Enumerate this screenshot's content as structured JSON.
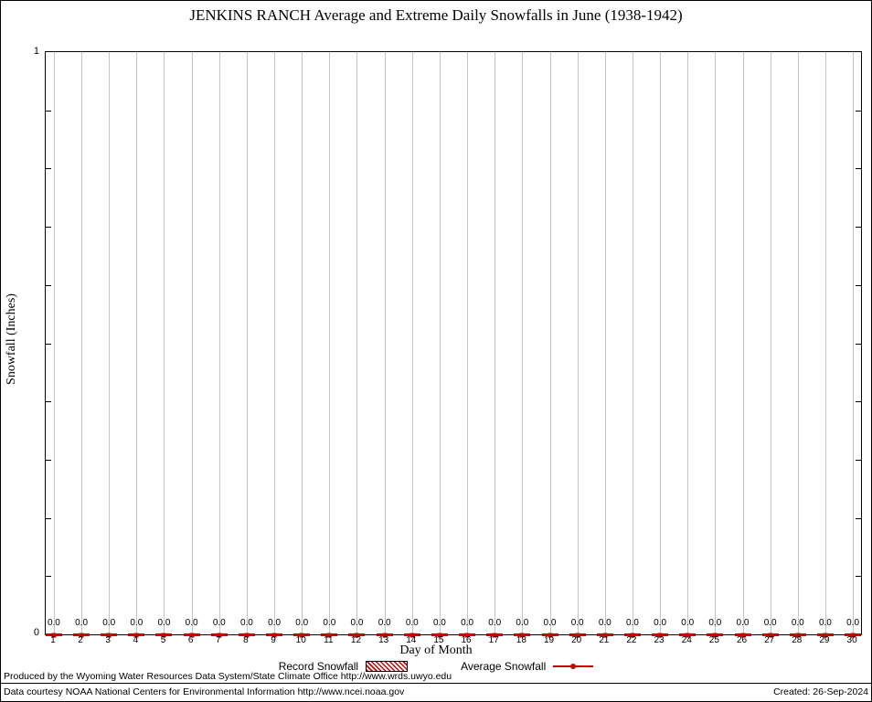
{
  "title": "JENKINS RANCH Average and Extreme Daily Snowfalls in June (1938-1942)",
  "y_axis": {
    "label": "Snowfall (Inches)",
    "max_label": "1",
    "min_label": "0"
  },
  "x_axis": {
    "label": "Day of Month"
  },
  "legend": {
    "record_label": "Record Snowfall",
    "average_label": "Average Snowfall"
  },
  "footer": {
    "line1": "Produced by the Wyoming Water Resources Data System/State Climate Office http://www.wrds.uwyo.edu",
    "line2": "Data courtesy NOAA National Centers for Environmental Information http://www.ncei.noaa.gov",
    "created": "Created: 26-Sep-2024"
  },
  "colors": {
    "record": "#cc0000",
    "average": "#cc0000",
    "grid": "#c4c4c4"
  },
  "chart_data": {
    "type": "bar",
    "title": "JENKINS RANCH Average and Extreme Daily Snowfalls in June (1938-1942)",
    "xlabel": "Day of Month",
    "ylabel": "Snowfall (Inches)",
    "ylim": [
      0,
      1
    ],
    "grid": "vertical",
    "legend_position": "bottom",
    "categories": [
      1,
      2,
      3,
      4,
      5,
      6,
      7,
      8,
      9,
      10,
      11,
      12,
      13,
      14,
      15,
      16,
      17,
      18,
      19,
      20,
      21,
      22,
      23,
      24,
      25,
      26,
      27,
      28,
      29,
      30
    ],
    "series": [
      {
        "name": "Record Snowfall",
        "values": [
          0.0,
          0.0,
          0.0,
          0.0,
          0.0,
          0.0,
          0.0,
          0.0,
          0.0,
          0.0,
          0.0,
          0.0,
          0.0,
          0.0,
          0.0,
          0.0,
          0.0,
          0.0,
          0.0,
          0.0,
          0.0,
          0.0,
          0.0,
          0.0,
          0.0,
          0.0,
          0.0,
          0.0,
          0.0,
          0.0
        ]
      },
      {
        "name": "Average Snowfall",
        "values": [
          0.0,
          0.0,
          0.0,
          0.0,
          0.0,
          0.0,
          0.0,
          0.0,
          0.0,
          0.0,
          0.0,
          0.0,
          0.0,
          0.0,
          0.0,
          0.0,
          0.0,
          0.0,
          0.0,
          0.0,
          0.0,
          0.0,
          0.0,
          0.0,
          0.0,
          0.0,
          0.0,
          0.0,
          0.0,
          0.0
        ]
      }
    ],
    "point_labels": [
      "0.0",
      "0.0",
      "0.0",
      "0.0",
      "0.0",
      "0.0",
      "0.0",
      "0.0",
      "0.0",
      "0.0",
      "0.0",
      "0.0",
      "0.0",
      "0.0",
      "0.0",
      "0.0",
      "0.0",
      "0.0",
      "0.0",
      "0.0",
      "0.0",
      "0.0",
      "0.0",
      "0.0",
      "0.0",
      "0.0",
      "0.0",
      "0.0",
      "0.0",
      "0.0"
    ]
  }
}
